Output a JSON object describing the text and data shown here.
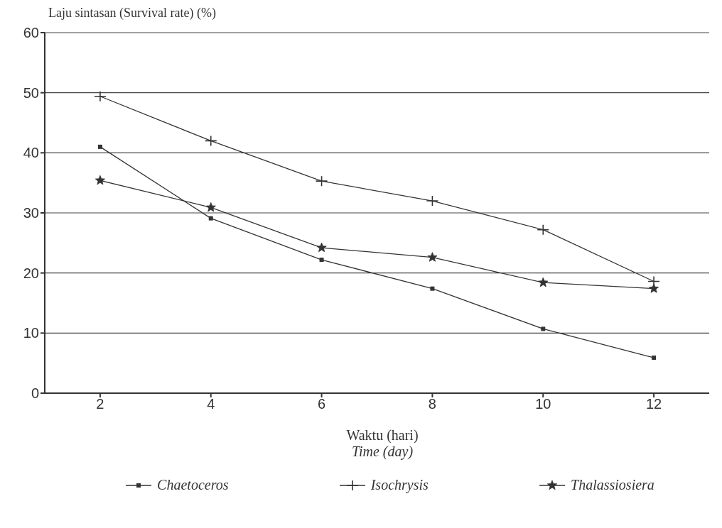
{
  "chart_data": {
    "type": "line",
    "xlabel": "Waktu (hari)\nTime (day)",
    "ylabel": "Laju sintasan (Survival rate) (%)",
    "x": [
      2,
      4,
      6,
      8,
      10,
      12
    ],
    "xlim": [
      1,
      13
    ],
    "xticks": [
      2,
      4,
      6,
      8,
      10,
      12
    ],
    "ylim": [
      0,
      60
    ],
    "yticks": [
      0,
      10,
      20,
      30,
      40,
      50,
      60
    ],
    "grid": "y",
    "legend": "bottom",
    "line_style": "solid",
    "series": [
      {
        "name": "Chaetoceros",
        "color": "#333333",
        "marker": "square",
        "values": [
          41,
          29.1,
          22.2,
          17.4,
          10.7,
          5.9
        ]
      },
      {
        "name": "Isochrysis",
        "color": "#333333",
        "marker": "cross",
        "values": [
          49.4,
          42,
          35.3,
          32,
          27.2,
          18.6
        ]
      },
      {
        "name": "Thalassiosiera",
        "color": "#333333",
        "marker": "star",
        "values": [
          35.4,
          30.9,
          24.2,
          22.6,
          18.4,
          17.4
        ]
      }
    ]
  }
}
